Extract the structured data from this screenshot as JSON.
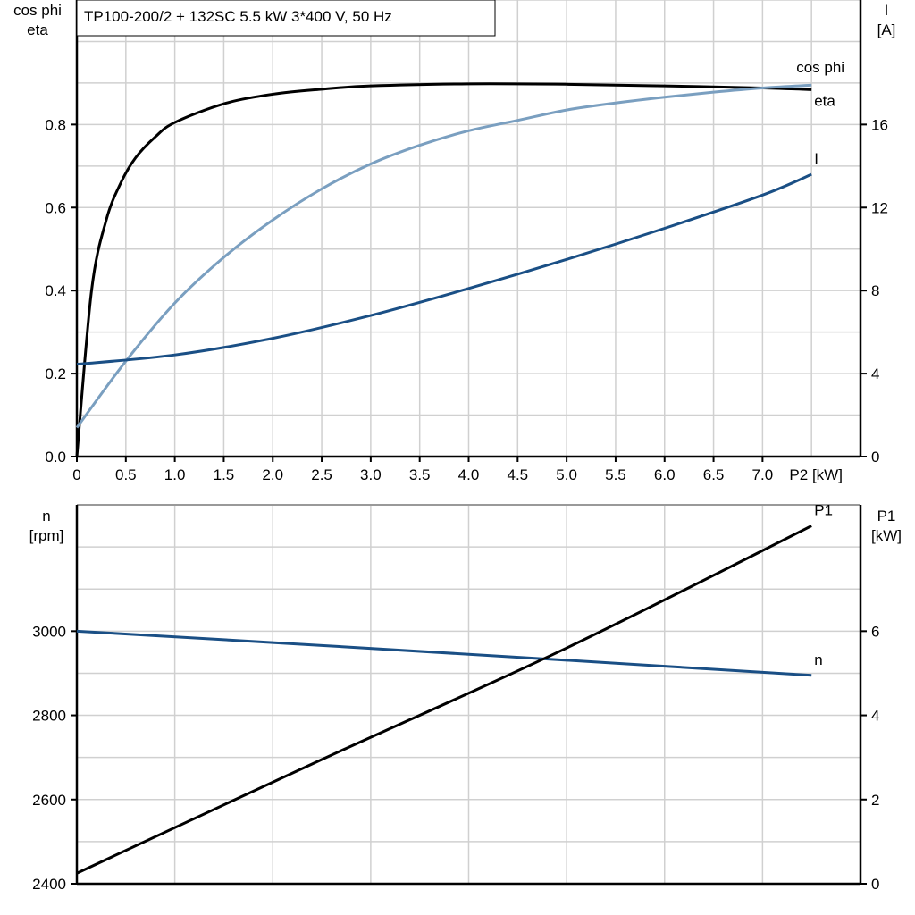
{
  "title": "TP100-200/2 + 132SC   5.5 kW   3*400 V, 50 Hz",
  "colors": {
    "eta": "#000000",
    "cos_phi": "#7a9fc0",
    "I": "#1a4f85",
    "n": "#1a4f85",
    "P1": "#000000",
    "grid": "#d0d0d0"
  },
  "chart_data": [
    {
      "type": "line",
      "xlabel": "P2 [kW]",
      "xticks": [
        "0",
        "0.5",
        "1.0",
        "1.5",
        "2.0",
        "2.5",
        "3.0",
        "3.5",
        "4.0",
        "4.5",
        "5.0",
        "5.5",
        "6.0",
        "6.5",
        "7.0"
      ],
      "xlim": [
        0,
        8
      ],
      "ylabel_left": [
        "cos phi",
        "eta"
      ],
      "ylim_left": [
        0,
        1.1
      ],
      "yticks_left": [
        "0.0",
        "0.2",
        "0.4",
        "0.6",
        "0.8"
      ],
      "ylabel_right": [
        "I",
        "[A]"
      ],
      "ylim_right": [
        0,
        22
      ],
      "yticks_right": [
        "0",
        "4",
        "8",
        "12",
        "16"
      ],
      "grid": true,
      "series": [
        {
          "name": "eta",
          "axis": "left",
          "x": [
            0,
            0.15,
            0.3,
            0.45,
            0.6,
            0.8,
            1.0,
            1.5,
            2.0,
            2.5,
            3.0,
            4.0,
            5.0,
            6.0,
            7.0,
            7.5
          ],
          "y": [
            0,
            0.4,
            0.57,
            0.66,
            0.72,
            0.77,
            0.805,
            0.85,
            0.873,
            0.885,
            0.893,
            0.898,
            0.897,
            0.893,
            0.888,
            0.884
          ]
        },
        {
          "name": "cos phi",
          "axis": "left",
          "x": [
            0,
            0.5,
            1.0,
            1.5,
            2.0,
            2.5,
            3.0,
            3.5,
            4.0,
            4.5,
            5.0,
            5.5,
            6.0,
            6.5,
            7.0,
            7.5
          ],
          "y": [
            0.07,
            0.23,
            0.37,
            0.48,
            0.57,
            0.645,
            0.705,
            0.75,
            0.785,
            0.81,
            0.835,
            0.852,
            0.866,
            0.878,
            0.888,
            0.895
          ]
        },
        {
          "name": "I",
          "axis": "right",
          "x": [
            0,
            1,
            2,
            3,
            4,
            5,
            6,
            7,
            7.5
          ],
          "y": [
            4.45,
            4.9,
            5.7,
            6.8,
            8.1,
            9.5,
            11.0,
            12.6,
            13.6
          ]
        }
      ]
    },
    {
      "type": "line",
      "xlim": [
        0,
        8
      ],
      "ylabel_left": [
        "n",
        "[rpm]"
      ],
      "ylim_left": [
        2400,
        3300
      ],
      "yticks_left": [
        "2400",
        "2600",
        "2800",
        "3000"
      ],
      "ylabel_right": [
        "P1",
        "[kW]"
      ],
      "ylim_right": [
        0,
        9
      ],
      "yticks_right": [
        "0",
        "2",
        "4",
        "6"
      ],
      "grid": true,
      "series": [
        {
          "name": "n",
          "axis": "left",
          "x": [
            0,
            2.5,
            5,
            7.5
          ],
          "y": [
            3000,
            2966,
            2931,
            2895
          ]
        },
        {
          "name": "P1",
          "axis": "right",
          "x": [
            0,
            2.5,
            5,
            7.5
          ],
          "y": [
            0.25,
            2.95,
            5.6,
            8.5
          ]
        }
      ]
    }
  ]
}
